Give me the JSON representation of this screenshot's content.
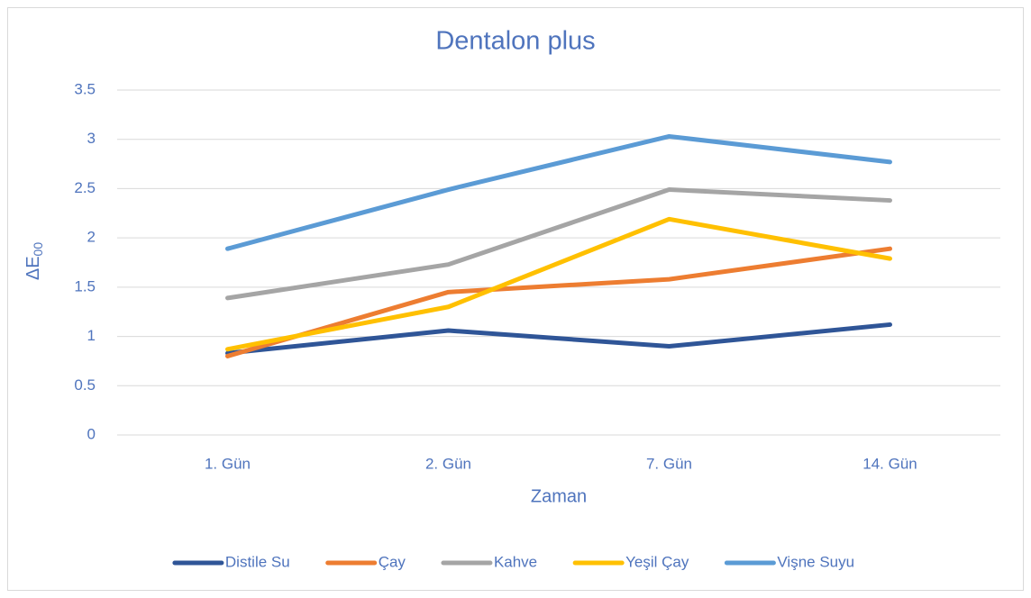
{
  "chart_data": {
    "type": "line",
    "title": "Dentalon plus",
    "x_label": "Zaman",
    "y_label": "ΔE",
    "y_label_sub": "00",
    "categories": [
      "1. Gün",
      "2. Gün",
      "7. Gün",
      "14. Gün"
    ],
    "series": [
      {
        "name": "Distile Su",
        "color": "#2f5597",
        "values": [
          0.83,
          1.06,
          0.9,
          1.12
        ]
      },
      {
        "name": "Çay",
        "color": "#ed7d31",
        "values": [
          0.8,
          1.45,
          1.58,
          1.89
        ]
      },
      {
        "name": "Kahve",
        "color": "#a5a5a5",
        "values": [
          1.39,
          1.73,
          2.49,
          2.38
        ]
      },
      {
        "name": "Yeşil Çay",
        "color": "#ffc000",
        "values": [
          0.87,
          1.3,
          2.19,
          1.79
        ]
      },
      {
        "name": "Vişne Suyu",
        "color": "#5b9bd5",
        "values": [
          1.89,
          2.49,
          3.03,
          2.77
        ]
      }
    ],
    "ylim": [
      0,
      3.5
    ],
    "yticks": [
      0,
      0.5,
      1,
      1.5,
      2,
      2.5,
      3,
      3.5
    ],
    "grid": true,
    "legend": "bottom"
  }
}
